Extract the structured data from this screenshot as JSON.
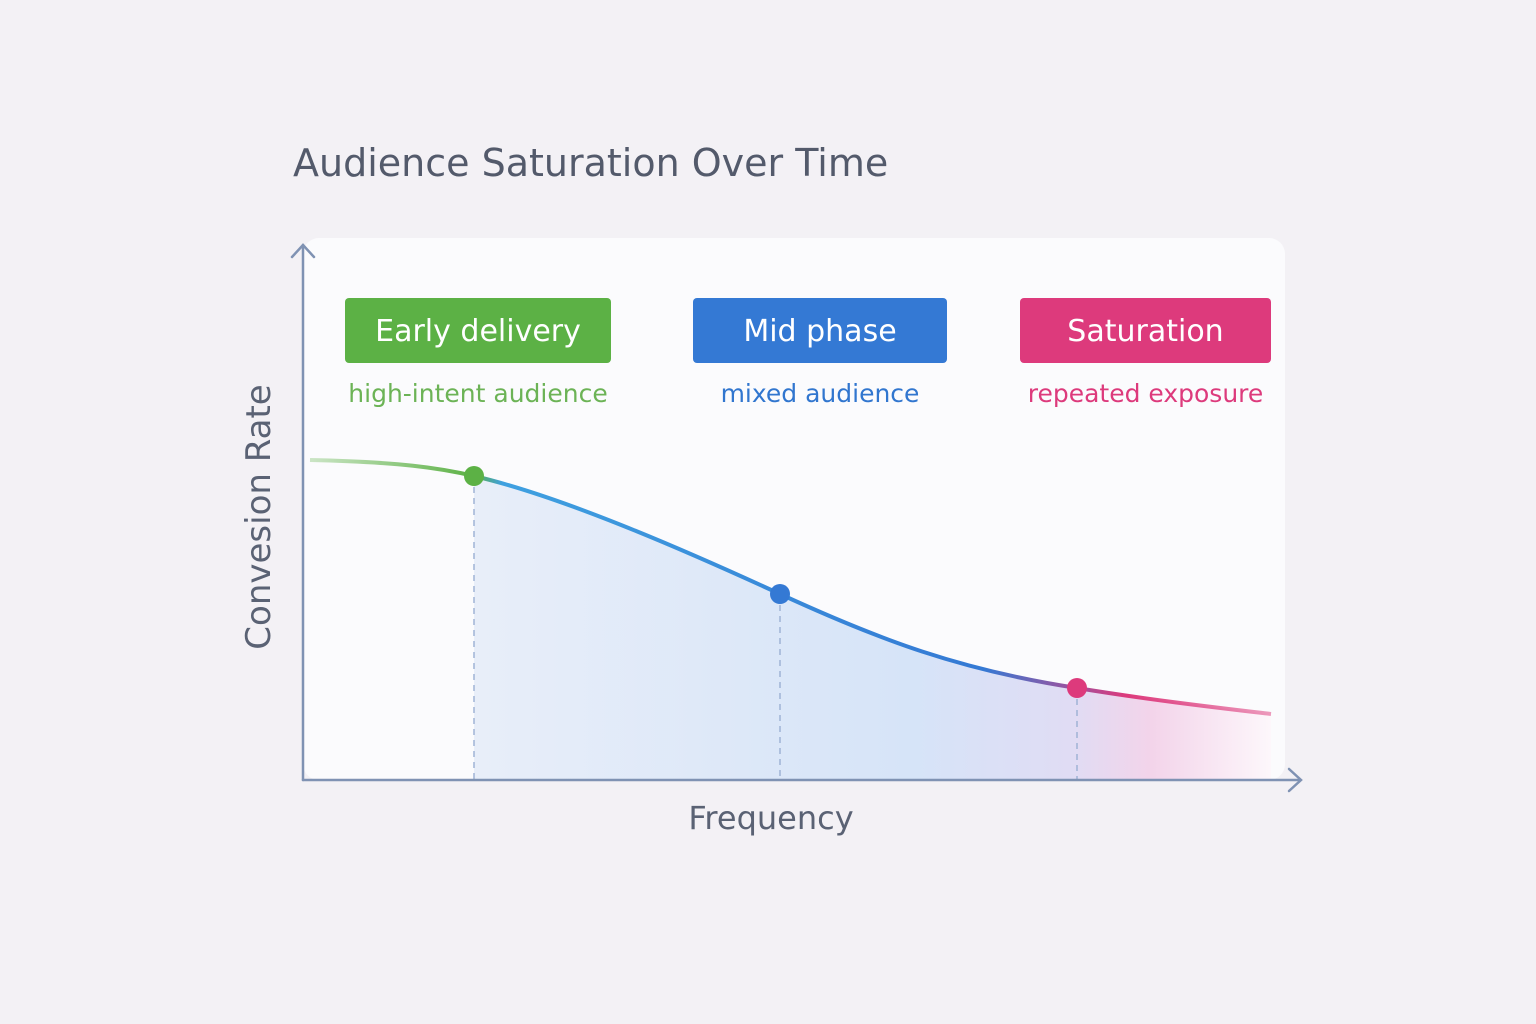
{
  "header": {
    "title": "Audience Saturation Over Time"
  },
  "axes": {
    "y_label": "Convesion Rate",
    "x_label": "Frequency"
  },
  "phases": [
    {
      "label": "Early delivery",
      "sublabel": "high-intent audience",
      "color": "#5cb145",
      "text_color": "#6cb356"
    },
    {
      "label": "Mid phase",
      "sublabel": "mixed audience",
      "color": "#3479d4",
      "text_color": "#3176cf"
    },
    {
      "label": "Saturation",
      "sublabel": "repeated exposure",
      "color": "#dd3a7c",
      "text_color": "#dd3a7c"
    }
  ]
}
